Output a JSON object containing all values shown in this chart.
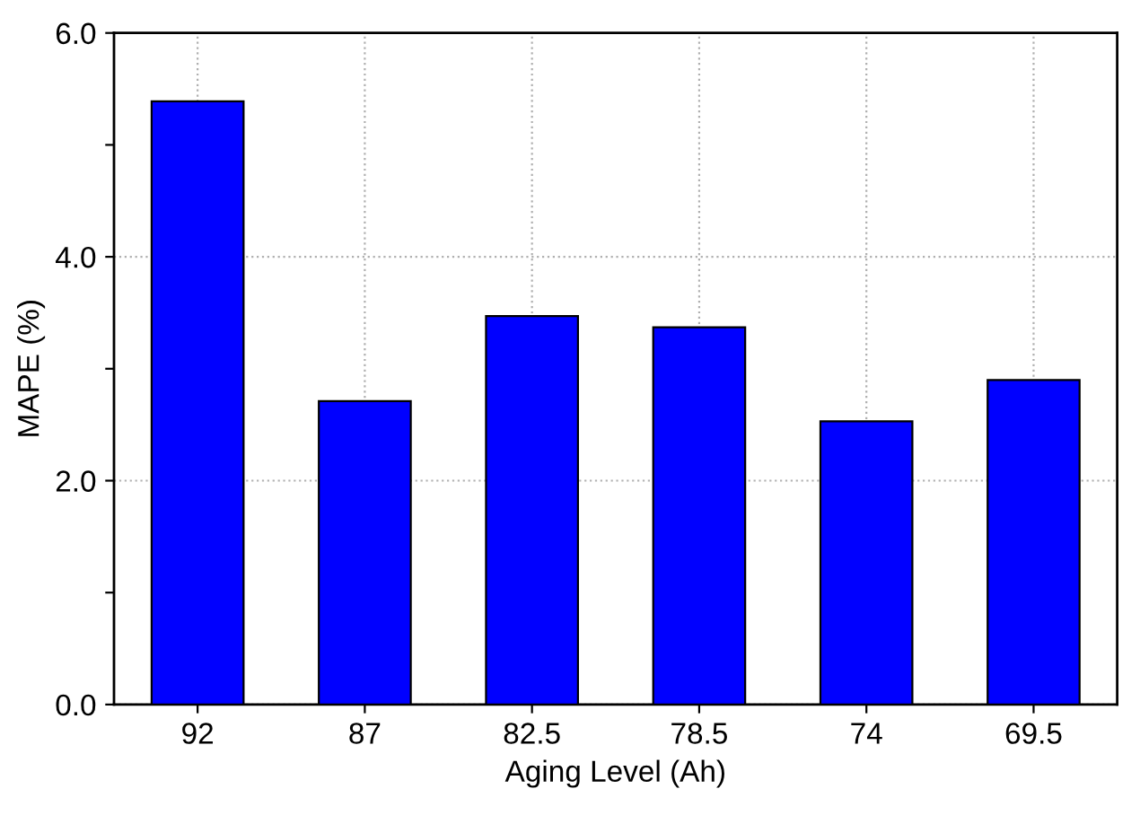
{
  "chart_data": {
    "type": "bar",
    "xlabel": "Aging Level (Ah)",
    "ylabel": "MAPE (%)",
    "categories": [
      "92",
      "87",
      "82.5",
      "78.5",
      "74",
      "69.5"
    ],
    "values": [
      5.39,
      2.71,
      3.47,
      3.37,
      2.53,
      2.9
    ],
    "color": "#0000ff",
    "ylim": [
      0,
      6
    ],
    "yticks": [
      {
        "value": 0,
        "label": "0.0"
      },
      {
        "value": 1,
        "label": null
      },
      {
        "value": 2,
        "label": "2.0"
      },
      {
        "value": 3,
        "label": null
      },
      {
        "value": 4,
        "label": "4.0"
      },
      {
        "value": 5,
        "label": null
      },
      {
        "value": 6,
        "label": "6.0"
      }
    ],
    "grid": true
  }
}
